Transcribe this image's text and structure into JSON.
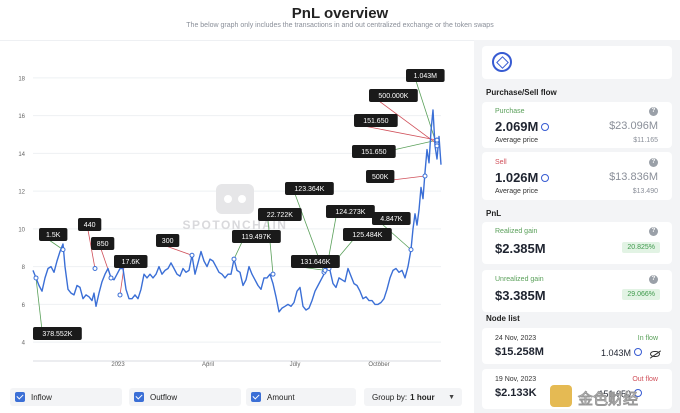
{
  "header": {
    "title": "PnL overview",
    "subtitle": "The below graph only includes the transactions in and out centralized exchange or the token swaps"
  },
  "watermark": {
    "chart": "SPOTONCHAIN",
    "corner": "金色财经"
  },
  "chart_data": {
    "type": "line",
    "title": "",
    "xlabel": "",
    "ylabel": "",
    "y_ticks": [
      4,
      6,
      8,
      10,
      12,
      14,
      16,
      18
    ],
    "x_ticks": [
      "2023",
      "April",
      "July",
      "October"
    ],
    "ylim": [
      3,
      19
    ],
    "series_color": "#3b6fd6",
    "price_series": [
      [
        0,
        7.8
      ],
      [
        3,
        7.4
      ],
      [
        6,
        7.0
      ],
      [
        9,
        6.7
      ],
      [
        12,
        7.4
      ],
      [
        15,
        7.9
      ],
      [
        18,
        8.0
      ],
      [
        21,
        7.7
      ],
      [
        24,
        8.3
      ],
      [
        27,
        8.8
      ],
      [
        30,
        9.2
      ],
      [
        32,
        8.0
      ],
      [
        35,
        6.8
      ],
      [
        38,
        6.6
      ],
      [
        41,
        6.5
      ],
      [
        44,
        7.0
      ],
      [
        47,
        6.9
      ],
      [
        50,
        6.3
      ],
      [
        53,
        6.5
      ],
      [
        56,
        6.4
      ],
      [
        59,
        6.2
      ],
      [
        61,
        6.6
      ],
      [
        63,
        5.9
      ],
      [
        66,
        6.6
      ],
      [
        69,
        7.2
      ],
      [
        72,
        7.6
      ],
      [
        75,
        7.9
      ],
      [
        78,
        7.4
      ],
      [
        81,
        7.3
      ],
      [
        84,
        7.6
      ],
      [
        87,
        7.9
      ],
      [
        90,
        7.9
      ],
      [
        93,
        6.8
      ],
      [
        96,
        6.3
      ],
      [
        99,
        6.3
      ],
      [
        102,
        6.5
      ],
      [
        105,
        6.3
      ],
      [
        108,
        6.8
      ],
      [
        111,
        7.6
      ],
      [
        114,
        7.4
      ],
      [
        117,
        7.6
      ],
      [
        120,
        7.4
      ],
      [
        123,
        7.6
      ],
      [
        126,
        8.0
      ],
      [
        129,
        7.6
      ],
      [
        132,
        7.8
      ],
      [
        135,
        7.9
      ],
      [
        138,
        8.2
      ],
      [
        141,
        7.9
      ],
      [
        144,
        7.6
      ],
      [
        147,
        7.5
      ],
      [
        150,
        7.9
      ],
      [
        153,
        7.7
      ],
      [
        156,
        7.8
      ],
      [
        159,
        8.6
      ],
      [
        162,
        7.6
      ],
      [
        165,
        8.2
      ],
      [
        168,
        8.8
      ],
      [
        171,
        8.3
      ],
      [
        174,
        8.0
      ],
      [
        177,
        8.4
      ],
      [
        180,
        8.3
      ],
      [
        183,
        8.0
      ],
      [
        186,
        7.7
      ],
      [
        189,
        7.6
      ],
      [
        192,
        7.4
      ],
      [
        195,
        7.6
      ],
      [
        198,
        7.6
      ],
      [
        201,
        8.4
      ],
      [
        204,
        7.8
      ],
      [
        207,
        7.7
      ],
      [
        210,
        7.0
      ],
      [
        213,
        7.3
      ],
      [
        216,
        8.0
      ],
      [
        219,
        7.6
      ],
      [
        222,
        7.3
      ],
      [
        225,
        7.0
      ],
      [
        228,
        6.8
      ],
      [
        231,
        7.4
      ],
      [
        234,
        7.4
      ],
      [
        237,
        7.6
      ],
      [
        240,
        7.1
      ],
      [
        243,
        6.4
      ],
      [
        246,
        5.6
      ],
      [
        249,
        5.8
      ],
      [
        252,
        5.9
      ],
      [
        255,
        6.0
      ],
      [
        258,
        5.9
      ],
      [
        261,
        6.1
      ],
      [
        264,
        6.7
      ],
      [
        267,
        6.9
      ],
      [
        270,
        5.9
      ],
      [
        273,
        5.7
      ],
      [
        276,
        5.8
      ],
      [
        279,
        6.2
      ],
      [
        282,
        6.7
      ],
      [
        285,
        7.0
      ],
      [
        288,
        7.3
      ],
      [
        291,
        7.6
      ],
      [
        294,
        8.0
      ],
      [
        297,
        7.8
      ],
      [
        300,
        7.1
      ],
      [
        303,
        6.9
      ],
      [
        306,
        7.4
      ],
      [
        309,
        7.3
      ],
      [
        312,
        7.2
      ],
      [
        315,
        7.9
      ],
      [
        318,
        7.5
      ],
      [
        321,
        7.1
      ],
      [
        324,
        7.0
      ],
      [
        327,
        6.7
      ],
      [
        330,
        6.3
      ],
      [
        333,
        6.4
      ],
      [
        336,
        6.2
      ],
      [
        339,
        6.2
      ],
      [
        342,
        6.0
      ],
      [
        345,
        6.0
      ],
      [
        348,
        6.1
      ],
      [
        351,
        6.3
      ],
      [
        354,
        6.8
      ],
      [
        357,
        7.4
      ],
      [
        360,
        7.8
      ],
      [
        363,
        7.9
      ],
      [
        366,
        7.7
      ],
      [
        369,
        7.8
      ],
      [
        372,
        7.4
      ],
      [
        375,
        8.0
      ],
      [
        378,
        8.9
      ],
      [
        380,
        10.0
      ],
      [
        382,
        10.8
      ],
      [
        384,
        10.2
      ],
      [
        386,
        11.0
      ],
      [
        388,
        12.2
      ],
      [
        390,
        11.6
      ],
      [
        392,
        13.0
      ],
      [
        394,
        14.2
      ],
      [
        396,
        13.5
      ],
      [
        398,
        15.2
      ],
      [
        400,
        16.3
      ],
      [
        402,
        14.4
      ],
      [
        404,
        13.7
      ],
      [
        406,
        14.9
      ],
      [
        408,
        13.4
      ]
    ],
    "annotations": [
      {
        "label": "1.5K",
        "tone": "green",
        "x": 30,
        "y": 8.9
      },
      {
        "label": "440",
        "tone": "red",
        "x": 62,
        "y": 7.9
      },
      {
        "label": "850",
        "tone": "red",
        "x": 78,
        "y": 7.4
      },
      {
        "label": "17.6K",
        "tone": "red",
        "x": 87,
        "y": 6.5
      },
      {
        "label": "300",
        "tone": "red",
        "x": 159,
        "y": 8.6
      },
      {
        "label": "119.497K",
        "tone": "green",
        "x": 201,
        "y": 8.4
      },
      {
        "label": "22.722K",
        "tone": "green",
        "x": 240,
        "y": 7.6
      },
      {
        "label": "123.364K",
        "tone": "green",
        "x": 291,
        "y": 7.7
      },
      {
        "label": "124.273K",
        "tone": "green",
        "x": 294,
        "y": 8.0
      },
      {
        "label": "125.484K",
        "tone": "green",
        "x": 296,
        "y": 7.9
      },
      {
        "label": "131.646K",
        "tone": "green",
        "x": 292,
        "y": 7.8
      },
      {
        "label": "4.847K",
        "tone": "green",
        "x": 378,
        "y": 8.9
      },
      {
        "label": "500K",
        "tone": "red",
        "x": 392,
        "y": 12.8
      },
      {
        "label": "151.650",
        "tone": "red",
        "x": 404,
        "y": 14.7
      },
      {
        "label": "151.650",
        "tone": "green",
        "x": 404,
        "y": 14.7
      },
      {
        "label": "500.000K",
        "tone": "red",
        "x": 404,
        "y": 14.5
      },
      {
        "label": "1.043M",
        "tone": "green",
        "x": 404,
        "y": 14.4
      },
      {
        "label": "378.552K",
        "tone": "green",
        "x": 3,
        "y": 7.4
      }
    ]
  },
  "controls": {
    "inflow": "Inflow",
    "outflow": "Outflow",
    "amount": "Amount",
    "group_by_label": "Group by:",
    "group_by_value": "1 hour"
  },
  "panel": {
    "logo_icon": "chainlink-hex-icon",
    "purchase_sell_title": "Purchase/Sell flow",
    "purchase": {
      "label": "Purchase",
      "amount": "2.069M",
      "usd": "$23.096M",
      "avg_label": "Average price",
      "avg_value": "$11.165"
    },
    "sell": {
      "label": "Sell",
      "amount": "1.026M",
      "usd": "$13.836M",
      "avg_label": "Average price",
      "avg_value": "$13.490"
    },
    "pnl_title": "PnL",
    "realized": {
      "label": "Realized gain",
      "value": "$2.385M",
      "pct": "20.825%"
    },
    "unrealized": {
      "label": "Unrealized gain",
      "value": "$3.385M",
      "pct": "29.066%"
    },
    "node_title": "Node list",
    "nodes": [
      {
        "date": "24 Nov, 2023",
        "flow": "In flow",
        "usd": "$15.258M",
        "amount": "1.043M"
      },
      {
        "date": "19 Nov, 2023",
        "flow": "Out flow",
        "usd": "$2.133K",
        "amount": "151.650"
      }
    ]
  },
  "colors": {
    "accent": "#3b6fd6",
    "green": "#5aa05a",
    "red": "#d0505a",
    "label_bg": "#1a1a1a"
  }
}
